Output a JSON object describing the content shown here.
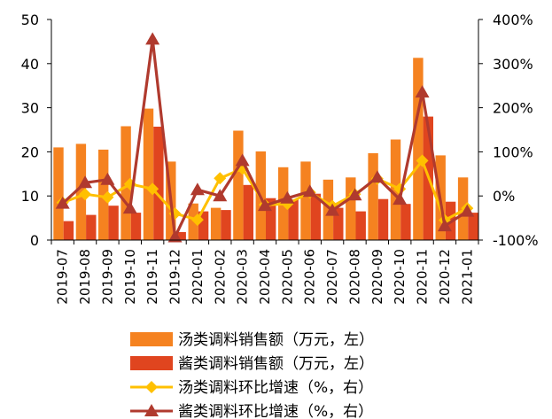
{
  "chart_data": {
    "type": "bar",
    "categories": [
      "2019-07",
      "2019-08",
      "2019-09",
      "2019-10",
      "2019-11",
      "2019-12",
      "2020-01",
      "2020-02",
      "2020-03",
      "2020-04",
      "2020-05",
      "2020-06",
      "2020-07",
      "2020-08",
      "2020-09",
      "2020-10",
      "2020-11",
      "2020-12",
      "2021-01"
    ],
    "left_axis": {
      "ylim": [
        0,
        50
      ],
      "ticks": [
        "0",
        "10",
        "20",
        "30",
        "40",
        "50"
      ]
    },
    "right_axis": {
      "ylim": [
        -100,
        400
      ],
      "ticks": [
        "-100%",
        "0%",
        "100%",
        "200%",
        "300%",
        "400%"
      ]
    },
    "grid": false,
    "legend_position": "bottom",
    "series": [
      {
        "name": "汤类调料销售额（万元，左）",
        "kind": "bar",
        "axis": "left",
        "color": "#F58220",
        "values": [
          21,
          21.8,
          20.5,
          25.8,
          29.8,
          17.8,
          8.3,
          7.3,
          24.8,
          20.1,
          16.5,
          17.8,
          13.7,
          14.2,
          19.7,
          22.8,
          41.3,
          19.2,
          14.2
        ]
      },
      {
        "name": "酱类调料销售额（万元，左）",
        "kind": "bar",
        "axis": "left",
        "color": "#E0451F",
        "values": [
          4.3,
          5.7,
          7.8,
          6.2,
          25.7,
          1.8,
          6.5,
          6.8,
          12.5,
          9.5,
          9.2,
          10.5,
          7.3,
          6.5,
          9.3,
          8.2,
          28.0,
          8.7,
          6.2
        ]
      },
      {
        "name": "汤类调料环比增速（%，右）",
        "kind": "line",
        "axis": "right",
        "color": "#FFC000",
        "marker": "diamond",
        "values": [
          -15,
          4,
          -3,
          27,
          16,
          -40,
          -54,
          40,
          62,
          -20,
          -18,
          8,
          -23,
          4,
          39,
          16,
          80,
          -55,
          -28
        ]
      },
      {
        "name": "酱类调料环比增速（%，右）",
        "kind": "line",
        "axis": "right",
        "color": "#B03A2E",
        "marker": "triangle",
        "values": [
          -17,
          30,
          37,
          -28,
          355,
          -93,
          14,
          0,
          80,
          -22,
          -5,
          10,
          -33,
          2,
          42,
          -8,
          235,
          -68,
          -35
        ]
      }
    ]
  }
}
